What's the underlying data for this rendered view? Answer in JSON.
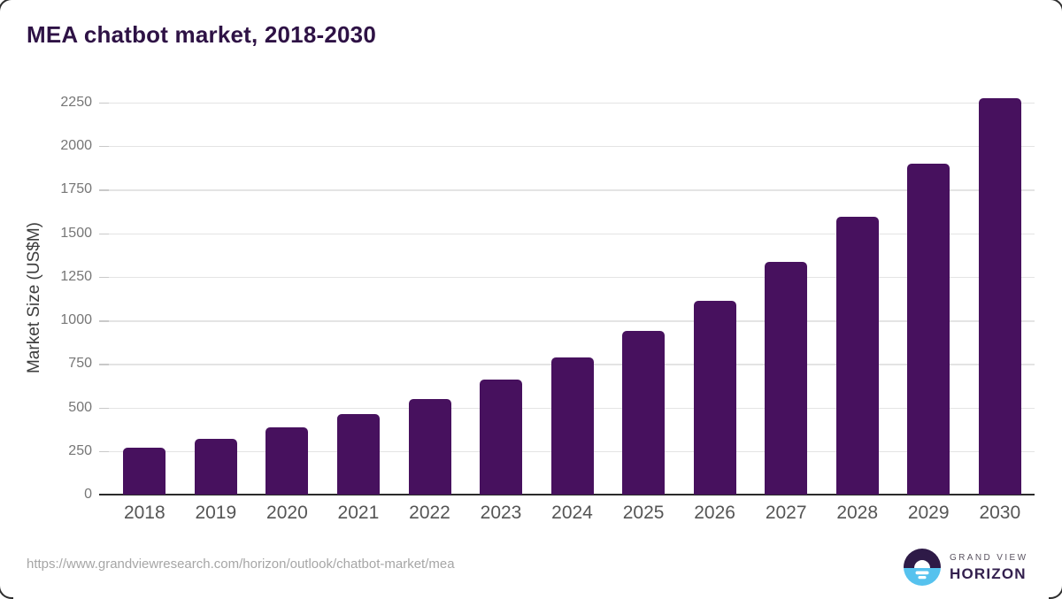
{
  "title": "MEA chatbot market, 2018-2030",
  "source": {
    "url": "https://www.grandviewresearch.com/horizon/outlook/chatbot-market/mea"
  },
  "logo": {
    "top_text": "GRAND VIEW",
    "bottom_text": "HORIZON"
  },
  "colors": {
    "bar": "#47115e",
    "title": "#2e1245",
    "axis_title": "#3d3d3d",
    "ytick": "#767676",
    "xtick": "#555555",
    "gridline": "#e4e4e4",
    "axis_line": "#2b2b2b",
    "source": "#a6a6a6",
    "logo_purple": "#2e1a47",
    "logo_blue": "#56c2ee",
    "logo_gray": "#5a5360",
    "logo_dark": "#33204e"
  },
  "chart_data": {
    "type": "bar",
    "title": "MEA chatbot market, 2018-2030",
    "categories": [
      "2018",
      "2019",
      "2020",
      "2021",
      "2022",
      "2023",
      "2024",
      "2025",
      "2026",
      "2027",
      "2028",
      "2029",
      "2030"
    ],
    "values": [
      270,
      318,
      388,
      462,
      546,
      660,
      788,
      940,
      1113,
      1336,
      1596,
      1898,
      2276
    ],
    "xlabel": "",
    "ylabel": "Market Size (US$M)",
    "yticks": [
      0,
      250,
      500,
      750,
      1000,
      1250,
      1500,
      1750,
      2000,
      2250
    ],
    "ylim": [
      0,
      2355
    ],
    "grid": true,
    "legend": false,
    "bar_color": "#47115e"
  }
}
